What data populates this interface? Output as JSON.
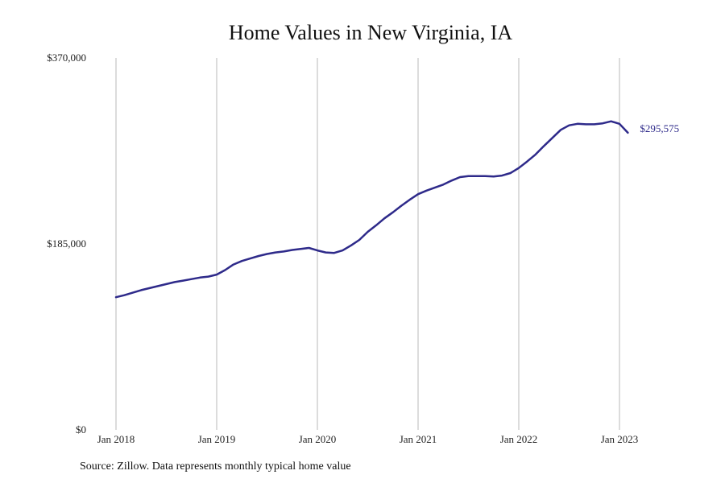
{
  "chart_data": {
    "type": "line",
    "title": "Home Values in New Virginia, IA",
    "xlabel": "",
    "ylabel": "",
    "ylim": [
      0,
      370000
    ],
    "yticks": [
      0,
      185000,
      370000
    ],
    "ytick_labels": [
      "$0",
      "$185,000",
      "$370,000"
    ],
    "xtick_labels": [
      "Jan 2018",
      "Jan 2019",
      "Jan 2020",
      "Jan 2021",
      "Jan 2022",
      "Jan 2023"
    ],
    "grid": "vertical",
    "line_color": "#2e2a8a",
    "end_label": "$295,575",
    "series": [
      {
        "x": [
          "2018-01",
          "2018-02",
          "2018-03",
          "2018-04",
          "2018-05",
          "2018-06",
          "2018-07",
          "2018-08",
          "2018-09",
          "2018-10",
          "2018-11",
          "2018-12",
          "2019-01",
          "2019-02",
          "2019-03",
          "2019-04",
          "2019-05",
          "2019-06",
          "2019-07",
          "2019-08",
          "2019-09",
          "2019-10",
          "2019-11",
          "2019-12",
          "2020-01",
          "2020-02",
          "2020-03",
          "2020-04",
          "2020-05",
          "2020-06",
          "2020-07",
          "2020-08",
          "2020-09",
          "2020-10",
          "2020-11",
          "2020-12",
          "2021-01",
          "2021-02",
          "2021-03",
          "2021-04",
          "2021-05",
          "2021-06",
          "2021-07",
          "2021-08",
          "2021-09",
          "2021-10",
          "2021-11",
          "2021-12",
          "2022-01",
          "2022-02",
          "2022-03",
          "2022-04",
          "2022-05",
          "2022-06",
          "2022-07",
          "2022-08",
          "2022-09",
          "2022-10",
          "2022-11",
          "2022-12",
          "2023-01",
          "2023-02"
        ],
        "values": [
          132000,
          134000,
          136500,
          139000,
          141000,
          143000,
          145000,
          147000,
          148500,
          150000,
          151500,
          152500,
          154500,
          159000,
          164500,
          168000,
          170500,
          173000,
          175000,
          176500,
          177500,
          179000,
          180000,
          181000,
          178500,
          176500,
          176000,
          178500,
          183500,
          189000,
          197000,
          203500,
          210500,
          216500,
          223000,
          229000,
          234500,
          238000,
          241000,
          244000,
          248000,
          251500,
          252500,
          252500,
          252500,
          252000,
          253000,
          255500,
          260500,
          267000,
          274000,
          282500,
          290500,
          298500,
          303000,
          304500,
          304000,
          304000,
          305000,
          307000,
          304500,
          295575
        ]
      }
    ]
  },
  "source_text": "Source: Zillow. Data represents monthly typical home value"
}
